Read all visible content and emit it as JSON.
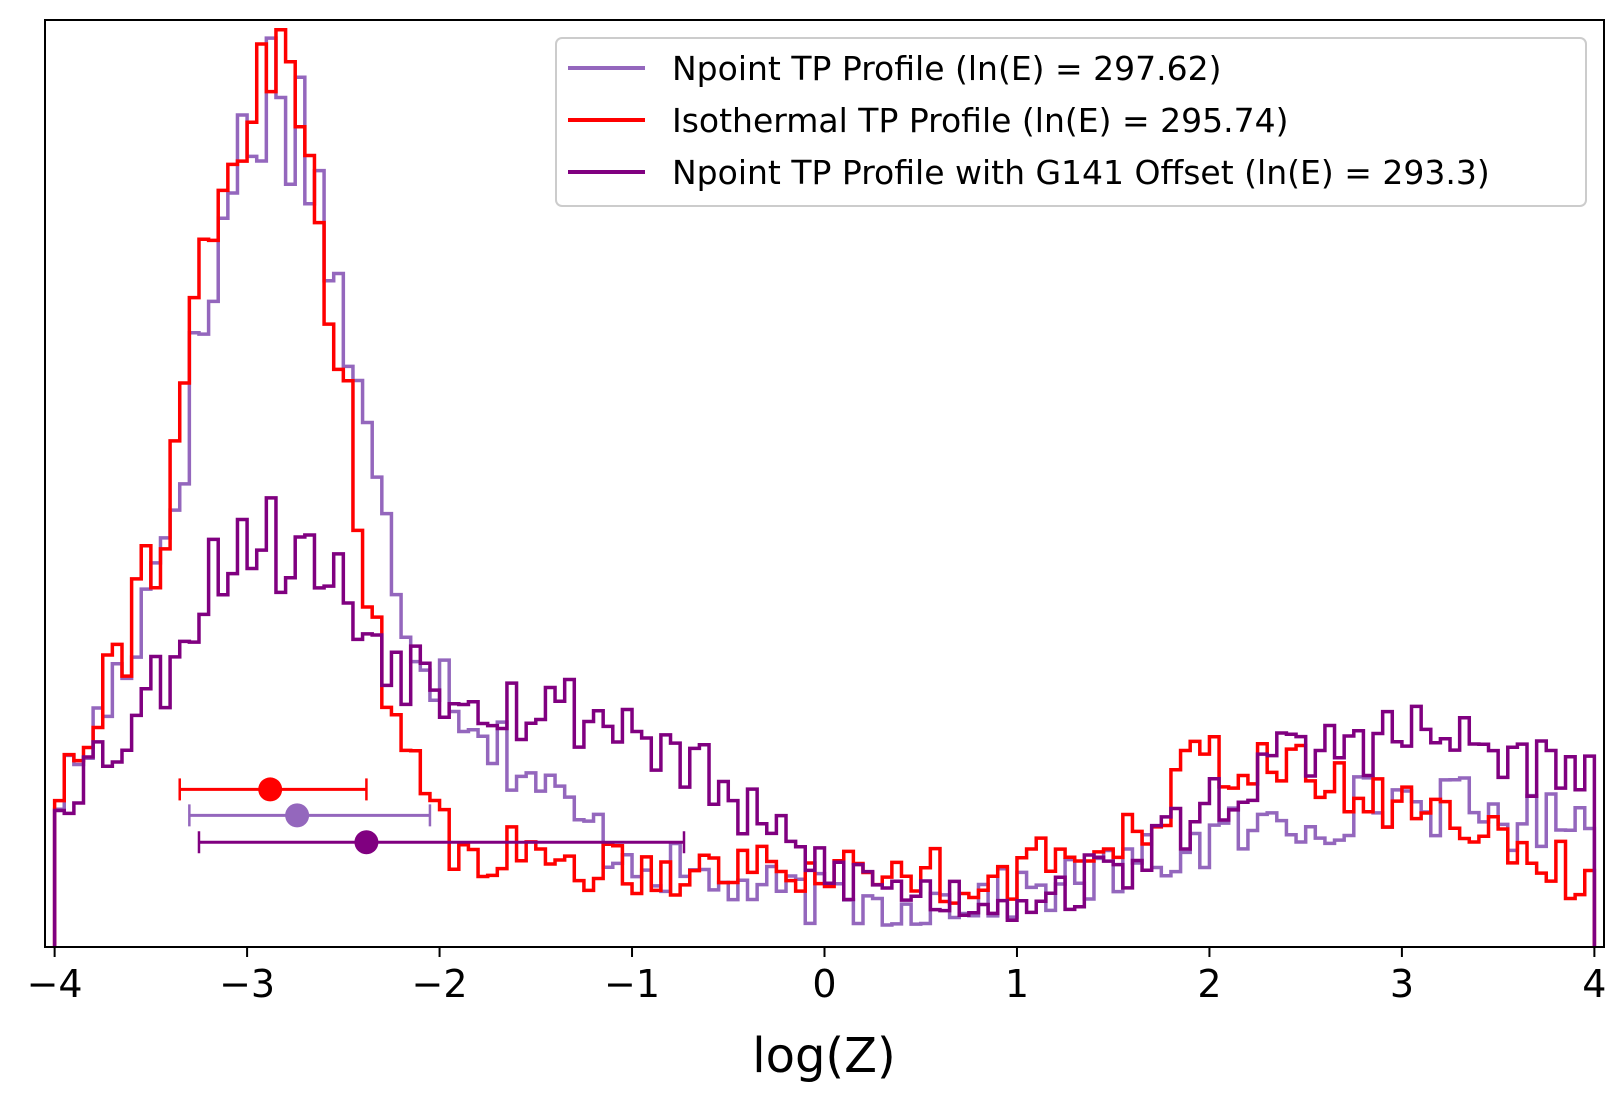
{
  "chart_data": {
    "type": "histogram",
    "xlabel": "log(Z)",
    "ylabel": "",
    "title": "",
    "xlim": [
      -4.05,
      4.05
    ],
    "ylim": [
      0,
      1.0
    ],
    "xticks": [
      -4,
      -3,
      -2,
      -1,
      0,
      1,
      2,
      3,
      4
    ],
    "xtick_labels": [
      "−4",
      "−3",
      "−2",
      "−1",
      "0",
      "1",
      "2",
      "3",
      "4"
    ],
    "legend_position": "top-right",
    "bin_range": [
      -4,
      4
    ],
    "series": [
      {
        "name": "Npoint TP Profile (ln(E) = 297.62)",
        "color": "#9467bd",
        "anchors": [
          [
            -4.0,
            0.16
          ],
          [
            -3.9,
            0.19
          ],
          [
            -3.75,
            0.25
          ],
          [
            -3.6,
            0.33
          ],
          [
            -3.45,
            0.43
          ],
          [
            -3.3,
            0.58
          ],
          [
            -3.2,
            0.7
          ],
          [
            -3.1,
            0.8
          ],
          [
            -3.0,
            0.88
          ],
          [
            -2.9,
            0.93
          ],
          [
            -2.8,
            0.92
          ],
          [
            -2.7,
            0.88
          ],
          [
            -2.6,
            0.79
          ],
          [
            -2.5,
            0.68
          ],
          [
            -2.4,
            0.56
          ],
          [
            -2.3,
            0.46
          ],
          [
            -2.2,
            0.38
          ],
          [
            -2.1,
            0.33
          ],
          [
            -2.0,
            0.3
          ],
          [
            -1.85,
            0.26
          ],
          [
            -1.7,
            0.22
          ],
          [
            -1.5,
            0.18
          ],
          [
            -1.3,
            0.14
          ],
          [
            -1.1,
            0.11
          ],
          [
            -0.9,
            0.09
          ],
          [
            -0.6,
            0.07
          ],
          [
            -0.3,
            0.06
          ],
          [
            0.0,
            0.05
          ],
          [
            0.3,
            0.045
          ],
          [
            0.6,
            0.05
          ],
          [
            0.9,
            0.055
          ],
          [
            1.2,
            0.065
          ],
          [
            1.5,
            0.08
          ],
          [
            1.8,
            0.1
          ],
          [
            2.1,
            0.12
          ],
          [
            2.4,
            0.13
          ],
          [
            2.7,
            0.15
          ],
          [
            3.0,
            0.16
          ],
          [
            3.2,
            0.155
          ],
          [
            3.5,
            0.14
          ],
          [
            3.75,
            0.13
          ],
          [
            3.9,
            0.16
          ],
          [
            4.0,
            0.16
          ]
        ]
      },
      {
        "name": "Isothermal TP Profile (ln(E) = 295.74)",
        "color": "#ff0000",
        "anchors": [
          [
            -4.0,
            0.16
          ],
          [
            -3.9,
            0.22
          ],
          [
            -3.75,
            0.29
          ],
          [
            -3.6,
            0.35
          ],
          [
            -3.45,
            0.45
          ],
          [
            -3.3,
            0.64
          ],
          [
            -3.15,
            0.76
          ],
          [
            -3.05,
            0.86
          ],
          [
            -2.95,
            0.92
          ],
          [
            -2.85,
            0.95
          ],
          [
            -2.75,
            0.91
          ],
          [
            -2.65,
            0.83
          ],
          [
            -2.55,
            0.69
          ],
          [
            -2.45,
            0.53
          ],
          [
            -2.35,
            0.38
          ],
          [
            -2.25,
            0.26
          ],
          [
            -2.15,
            0.19
          ],
          [
            -2.05,
            0.135
          ],
          [
            -1.9,
            0.11
          ],
          [
            -1.6,
            0.1
          ],
          [
            -1.2,
            0.09
          ],
          [
            -0.9,
            0.085
          ],
          [
            -0.5,
            0.09
          ],
          [
            -0.2,
            0.085
          ],
          [
            0.2,
            0.08
          ],
          [
            0.5,
            0.085
          ],
          [
            0.8,
            0.07
          ],
          [
            1.0,
            0.08
          ],
          [
            1.3,
            0.1
          ],
          [
            1.6,
            0.13
          ],
          [
            1.9,
            0.19
          ],
          [
            2.1,
            0.21
          ],
          [
            2.3,
            0.2
          ],
          [
            2.5,
            0.18
          ],
          [
            2.8,
            0.16
          ],
          [
            3.1,
            0.15
          ],
          [
            3.4,
            0.13
          ],
          [
            3.7,
            0.11
          ],
          [
            3.9,
            0.07
          ],
          [
            4.0,
            0.06
          ]
        ]
      },
      {
        "name": "Npoint TP Profile with G141 Offset (ln(E) = 293.3)",
        "color": "#800080",
        "anchors": [
          [
            -4.0,
            0.16
          ],
          [
            -3.85,
            0.19
          ],
          [
            -3.65,
            0.23
          ],
          [
            -3.45,
            0.29
          ],
          [
            -3.25,
            0.38
          ],
          [
            -3.1,
            0.43
          ],
          [
            -3.0,
            0.45
          ],
          [
            -2.8,
            0.43
          ],
          [
            -2.6,
            0.41
          ],
          [
            -2.4,
            0.35
          ],
          [
            -2.2,
            0.31
          ],
          [
            -2.0,
            0.29
          ],
          [
            -1.8,
            0.28
          ],
          [
            -1.6,
            0.26
          ],
          [
            -1.4,
            0.26
          ],
          [
            -1.2,
            0.25
          ],
          [
            -1.0,
            0.24
          ],
          [
            -0.8,
            0.21
          ],
          [
            -0.6,
            0.18
          ],
          [
            -0.4,
            0.14
          ],
          [
            -0.2,
            0.11
          ],
          [
            0.0,
            0.085
          ],
          [
            0.3,
            0.065
          ],
          [
            0.6,
            0.055
          ],
          [
            0.9,
            0.05
          ],
          [
            1.2,
            0.06
          ],
          [
            1.5,
            0.08
          ],
          [
            1.8,
            0.12
          ],
          [
            2.1,
            0.17
          ],
          [
            2.4,
            0.2
          ],
          [
            2.7,
            0.22
          ],
          [
            3.0,
            0.23
          ],
          [
            3.3,
            0.22
          ],
          [
            3.6,
            0.2
          ],
          [
            3.9,
            0.18
          ],
          [
            4.0,
            0.17
          ]
        ]
      }
    ],
    "error_bars": [
      {
        "series": "Isothermal TP Profile (ln(E) = 295.74)",
        "color": "#ff0000",
        "x": -2.88,
        "xmin": -3.35,
        "xmax": -2.38,
        "y": 0.17
      },
      {
        "series": "Npoint TP Profile (ln(E) = 297.62)",
        "color": "#9467bd",
        "x": -2.74,
        "xmin": -3.3,
        "xmax": -2.05,
        "y": 0.142
      },
      {
        "series": "Npoint TP Profile with G141 Offset (ln(E) = 293.3)",
        "color": "#800080",
        "x": -2.38,
        "xmin": -3.25,
        "xmax": -0.73,
        "y": 0.113
      }
    ]
  }
}
